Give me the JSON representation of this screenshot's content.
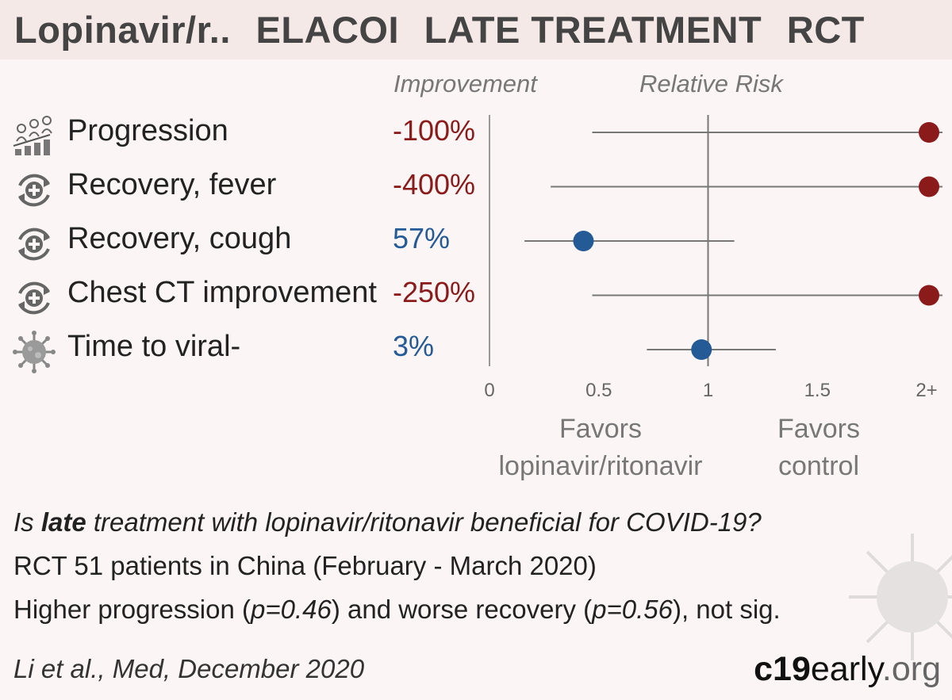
{
  "header": {
    "drug": "Lopinavir/r..",
    "trial": "ELACOI",
    "stage": "LATE TREATMENT",
    "design": "RCT"
  },
  "columns": {
    "improvement": "Improvement",
    "relative_risk": "Relative Risk"
  },
  "colors": {
    "negative": "#8b1a1a",
    "positive": "#245a96",
    "line": "#777777",
    "axis": "#999999"
  },
  "chart_data": {
    "type": "forest",
    "x_axis": {
      "ticks": [
        0,
        0.5,
        1,
        1.5,
        2
      ],
      "tick_labels": [
        "0",
        "0.5",
        "1",
        "1.5",
        "2+"
      ],
      "range": [
        0,
        2.1
      ],
      "reference": 1
    },
    "rows": [
      {
        "label": "Progression",
        "icon": "patients-progression-icon",
        "improvement": "-100%",
        "rr": 2.0,
        "ci": [
          0.47,
          2.0
        ],
        "direction": "negative"
      },
      {
        "label": "Recovery, fever",
        "icon": "recovery-cycle-icon",
        "improvement": "-400%",
        "rr": 2.0,
        "ci": [
          0.28,
          2.0
        ],
        "direction": "negative"
      },
      {
        "label": "Recovery, cough",
        "icon": "recovery-cycle-icon",
        "improvement": "57%",
        "rr": 0.43,
        "ci": [
          0.16,
          1.12
        ],
        "direction": "positive"
      },
      {
        "label": "Chest CT improvement",
        "icon": "recovery-cycle-icon",
        "improvement": "-250%",
        "rr": 2.0,
        "ci": [
          0.47,
          2.0
        ],
        "direction": "negative"
      },
      {
        "label": "Time to viral-",
        "icon": "virus-icon",
        "improvement": "3%",
        "rr": 0.97,
        "ci": [
          0.72,
          1.31
        ],
        "direction": "positive"
      }
    ],
    "favors_left": [
      "Favors",
      "lopinavir/ritonavir"
    ],
    "favors_right": [
      "Favors",
      "control"
    ]
  },
  "footer": {
    "question_pre": "Is ",
    "question_bold": "late",
    "question_post": " treatment with lopinavir/ritonavir beneficial for COVID-19?",
    "study": "RCT 51 patients in China (February - March 2020)",
    "findings_1": "Higher progression (",
    "findings_p1": "p=0.46",
    "findings_2": ") and worse recovery (",
    "findings_p2": "p=0.56",
    "findings_3": "), not sig.",
    "citation": "Li et al., Med, December 2020",
    "brand_bold": "c19",
    "brand_light": "early",
    "brand_dim": ".org"
  }
}
